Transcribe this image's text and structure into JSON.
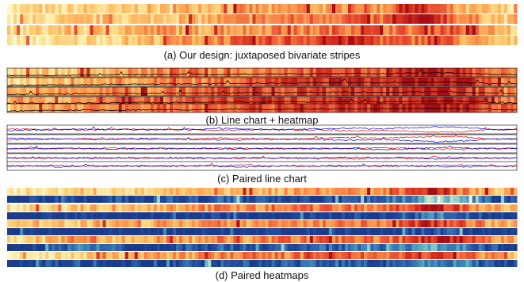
{
  "figure": {
    "panel_a_caption": "(a) Our design: juxtaposed bivariate stripes",
    "panel_b_caption": "(b) Line chart + heatmap",
    "panel_c_caption": "(c) Paired line chart",
    "panel_d_caption": "(d) Paired heatmaps"
  },
  "colors": {
    "warm_ramp": [
      "#fef8d2",
      "#fde9a4",
      "#fdc86e",
      "#fc9a4e",
      "#f0613a",
      "#d7301f",
      "#a50f15"
    ],
    "cool_ramp": [
      "#1d3c8a",
      "#173b8f",
      "#2b5aa8",
      "#3f86b8",
      "#5fb0c4",
      "#a6d7c9",
      "#eef6d9"
    ],
    "line_primary": "#0000e0",
    "line_secondary": "#e00000",
    "line_black": "#000000"
  },
  "chart_data": [
    {
      "type": "heatmap",
      "panel": "a",
      "rows": 4,
      "columns": 640,
      "series": [
        {
          "values": [
            0.15,
            0.25,
            0.18,
            0.3,
            0.2,
            0.35,
            0.28,
            0.45,
            0.4,
            0.5,
            0.38,
            0.55,
            0.42,
            0.65,
            0.5,
            0.9,
            0.7,
            0.35,
            0.3,
            0.2
          ]
        },
        {
          "values": [
            0.12,
            0.2,
            0.25,
            0.3,
            0.35,
            0.3,
            0.4,
            0.35,
            0.45,
            0.5,
            0.55,
            0.6,
            0.65,
            0.7,
            0.6,
            0.85,
            0.95,
            0.55,
            0.4,
            0.25
          ]
        },
        {
          "values": [
            0.2,
            0.25,
            0.35,
            0.3,
            0.4,
            0.45,
            0.5,
            0.42,
            0.55,
            0.5,
            0.6,
            0.55,
            0.62,
            0.7,
            0.65,
            0.6,
            0.75,
            0.7,
            0.45,
            0.3
          ]
        },
        {
          "values": [
            0.1,
            0.15,
            0.2,
            0.25,
            0.3,
            0.35,
            0.45,
            0.5,
            0.6,
            0.65,
            0.7,
            0.75,
            0.85,
            0.9,
            0.7,
            0.6,
            0.8,
            0.5,
            0.35,
            0.25
          ]
        }
      ]
    },
    {
      "type": "heatmap",
      "panel": "b",
      "rows": 5,
      "columns": 640,
      "overlay": "line",
      "series": [
        {
          "values": [
            0.3,
            0.35,
            0.3,
            0.4,
            0.45,
            0.5,
            0.55,
            0.6,
            0.55,
            0.6,
            0.65,
            0.7,
            0.72,
            0.75,
            0.7,
            0.9,
            0.98,
            0.8,
            0.6,
            0.5
          ]
        },
        {
          "values": [
            0.25,
            0.3,
            0.35,
            0.4,
            0.5,
            0.45,
            0.6,
            0.55,
            0.65,
            0.7,
            0.75,
            0.8,
            0.85,
            0.88,
            0.8,
            0.92,
            0.99,
            0.85,
            0.7,
            0.55
          ]
        },
        {
          "values": [
            0.35,
            0.4,
            0.45,
            0.5,
            0.55,
            0.5,
            0.6,
            0.65,
            0.7,
            0.75,
            0.72,
            0.78,
            0.8,
            0.85,
            0.75,
            0.9,
            0.95,
            0.8,
            0.65,
            0.5
          ]
        },
        {
          "values": [
            0.4,
            0.5,
            0.45,
            0.55,
            0.6,
            0.65,
            0.6,
            0.7,
            0.72,
            0.75,
            0.8,
            0.78,
            0.82,
            0.85,
            0.8,
            0.88,
            0.96,
            0.9,
            0.7,
            0.55
          ]
        },
        {
          "values": [
            0.3,
            0.45,
            0.5,
            0.55,
            0.5,
            0.6,
            0.65,
            0.6,
            0.7,
            0.75,
            0.7,
            0.8,
            0.78,
            0.82,
            0.85,
            0.9,
            0.97,
            0.92,
            0.75,
            0.6
          ]
        }
      ]
    },
    {
      "type": "line",
      "panel": "c",
      "rows": 5,
      "series": [
        {
          "values": [
            0.6,
            0.55,
            0.5,
            0.45,
            0.5,
            0.55,
            0.5,
            0.45,
            0.4,
            0.45,
            0.5,
            0.45,
            0.4,
            0.35,
            0.4,
            0.3,
            0.2,
            0.25,
            0.5,
            0.55
          ]
        },
        {
          "values": [
            0.4,
            0.45,
            0.5,
            0.55,
            0.5,
            0.45,
            0.5,
            0.55,
            0.6,
            0.55,
            0.5,
            0.55,
            0.6,
            0.65,
            0.6,
            0.7,
            0.8,
            0.75,
            0.5,
            0.45
          ]
        },
        {
          "values": [
            0.5,
            0.52,
            0.48,
            0.5,
            0.55,
            0.5,
            0.48,
            0.5,
            0.52,
            0.55,
            0.5,
            0.48,
            0.5,
            0.55,
            0.6,
            0.55,
            0.4,
            0.45,
            0.5,
            0.5
          ]
        },
        {
          "values": [
            0.5,
            0.45,
            0.5,
            0.55,
            0.5,
            0.45,
            0.5,
            0.55,
            0.5,
            0.45,
            0.5,
            0.55,
            0.45,
            0.4,
            0.5,
            0.45,
            0.6,
            0.55,
            0.5,
            0.5
          ]
        },
        {
          "values": [
            0.55,
            0.5,
            0.6,
            0.45,
            0.5,
            0.55,
            0.45,
            0.5,
            0.55,
            0.6,
            0.5,
            0.45,
            0.55,
            0.5,
            0.45,
            0.5,
            0.55,
            0.6,
            0.5,
            0.45
          ]
        }
      ]
    },
    {
      "type": "heatmap",
      "panel": "d",
      "rows": 10,
      "columns": 640,
      "series": [
        {
          "values": [
            0.15,
            0.2,
            0.25,
            0.3,
            0.25,
            0.35,
            0.3,
            0.4,
            0.35,
            0.45,
            0.4,
            0.5,
            0.45,
            0.55,
            0.5,
            0.7,
            0.95,
            0.6,
            0.4,
            0.3
          ]
        },
        {
          "values": [
            0.1,
            0.15,
            0.2,
            0.15,
            0.25,
            0.2,
            0.3,
            0.25,
            0.35,
            0.3,
            0.2,
            0.25,
            0.3,
            0.35,
            0.4,
            0.5,
            0.9,
            0.7,
            0.3,
            0.2
          ]
        },
        {
          "values": [
            0.2,
            0.25,
            0.3,
            0.35,
            0.4,
            0.35,
            0.45,
            0.5,
            0.55,
            0.5,
            0.6,
            0.55,
            0.65,
            0.6,
            0.55,
            0.75,
            0.95,
            0.7,
            0.45,
            0.3
          ]
        },
        {
          "values": [
            0.05,
            0.1,
            0.12,
            0.1,
            0.15,
            0.12,
            0.1,
            0.15,
            0.2,
            0.12,
            0.1,
            0.15,
            0.12,
            0.2,
            0.15,
            0.25,
            0.5,
            0.35,
            0.15,
            0.1
          ]
        },
        {
          "values": [
            0.3,
            0.35,
            0.3,
            0.4,
            0.45,
            0.4,
            0.5,
            0.45,
            0.55,
            0.5,
            0.6,
            0.55,
            0.6,
            0.65,
            0.6,
            0.7,
            0.85,
            0.7,
            0.5,
            0.4
          ]
        },
        {
          "values": [
            0.05,
            0.08,
            0.1,
            0.12,
            0.1,
            0.15,
            0.1,
            0.12,
            0.15,
            0.1,
            0.12,
            0.1,
            0.15,
            0.12,
            0.1,
            0.2,
            0.3,
            0.25,
            0.1,
            0.08
          ]
        },
        {
          "values": [
            0.2,
            0.3,
            0.45,
            0.55,
            0.4,
            0.35,
            0.5,
            0.45,
            0.55,
            0.5,
            0.6,
            0.55,
            0.65,
            0.6,
            0.55,
            0.7,
            0.9,
            0.85,
            0.5,
            0.4
          ]
        },
        {
          "values": [
            0.1,
            0.15,
            0.35,
            0.45,
            0.3,
            0.2,
            0.25,
            0.3,
            0.35,
            0.3,
            0.25,
            0.3,
            0.35,
            0.4,
            0.35,
            0.5,
            0.6,
            0.5,
            0.3,
            0.2
          ]
        },
        {
          "values": [
            0.15,
            0.2,
            0.25,
            0.3,
            0.35,
            0.4,
            0.45,
            0.5,
            0.55,
            0.6,
            0.55,
            0.6,
            0.65,
            0.7,
            0.65,
            0.75,
            0.8,
            0.7,
            0.5,
            0.35
          ]
        },
        {
          "values": [
            0.1,
            0.2,
            0.25,
            0.3,
            0.2,
            0.25,
            0.3,
            0.35,
            0.3,
            0.25,
            0.3,
            0.35,
            0.4,
            0.35,
            0.3,
            0.4,
            0.55,
            0.45,
            0.25,
            0.15
          ]
        }
      ]
    }
  ]
}
